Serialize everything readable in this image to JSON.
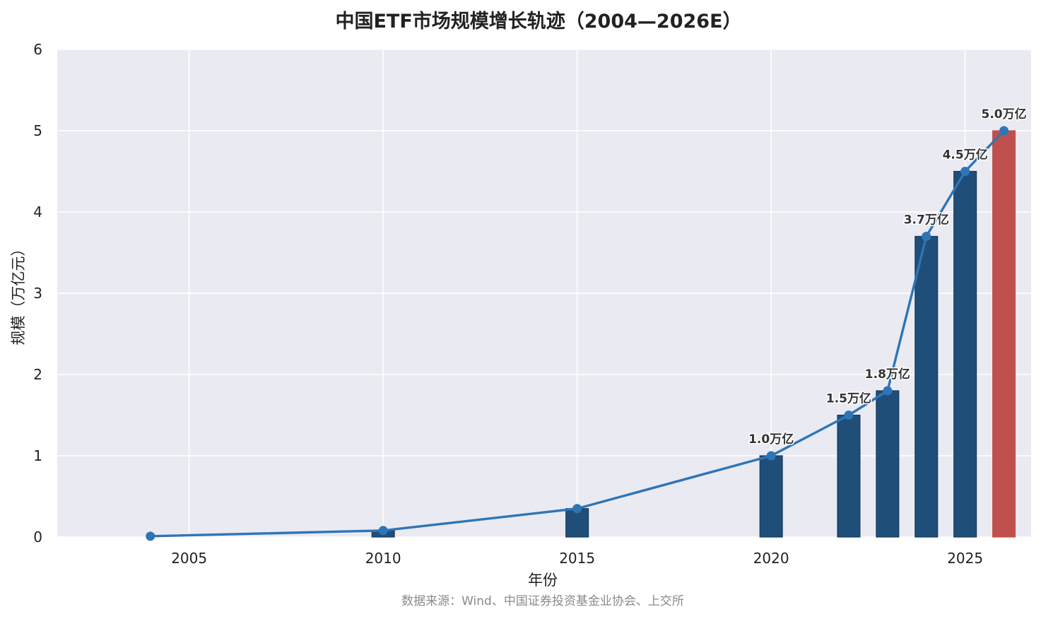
{
  "chart_data": {
    "type": "bar",
    "title": "中国ETF市场规模增长轨迹（2004—2026E）",
    "xlabel": "年份",
    "ylabel": "规模（万亿元）",
    "source": "数据来源：Wind、中国证券投资基金业协会、上交所",
    "xlim": [
      2001.6,
      2026.7
    ],
    "ylim": [
      0,
      6
    ],
    "x_ticks": [
      2005,
      2010,
      2015,
      2020,
      2025
    ],
    "y_ticks": [
      0,
      1,
      2,
      3,
      4,
      5,
      6
    ],
    "grid": true,
    "background": "#eaeaf2",
    "bars": [
      {
        "x": 2010,
        "value": 0.08,
        "color": "#1f4e79"
      },
      {
        "x": 2015,
        "value": 0.35,
        "color": "#1f4e79"
      },
      {
        "x": 2020,
        "value": 1.0,
        "color": "#1f4e79"
      },
      {
        "x": 2022,
        "value": 1.5,
        "color": "#1f4e79"
      },
      {
        "x": 2023,
        "value": 1.8,
        "color": "#1f4e79"
      },
      {
        "x": 2024,
        "value": 3.7,
        "color": "#1f4e79"
      },
      {
        "x": 2025,
        "value": 4.5,
        "color": "#1f4e79"
      },
      {
        "x": 2026,
        "value": 5.0,
        "color": "#c0504d"
      }
    ],
    "line": {
      "color": "#2e75b6",
      "points": [
        {
          "x": 2004,
          "y": 0.01
        },
        {
          "x": 2010,
          "y": 0.08
        },
        {
          "x": 2015,
          "y": 0.35
        },
        {
          "x": 2020,
          "y": 1.0
        },
        {
          "x": 2022,
          "y": 1.5
        },
        {
          "x": 2023,
          "y": 1.8
        },
        {
          "x": 2024,
          "y": 3.7
        },
        {
          "x": 2025,
          "y": 4.5
        },
        {
          "x": 2026,
          "y": 5.0
        }
      ]
    },
    "annotations": [
      {
        "x": 2020,
        "y": 1.0,
        "text": "1.0万亿"
      },
      {
        "x": 2022,
        "y": 1.5,
        "text": "1.5万亿"
      },
      {
        "x": 2023,
        "y": 1.8,
        "text": "1.8万亿"
      },
      {
        "x": 2024,
        "y": 3.7,
        "text": "3.7万亿"
      },
      {
        "x": 2025,
        "y": 4.5,
        "text": "4.5万亿"
      },
      {
        "x": 2026,
        "y": 5.0,
        "text": "5.0万亿"
      }
    ]
  }
}
